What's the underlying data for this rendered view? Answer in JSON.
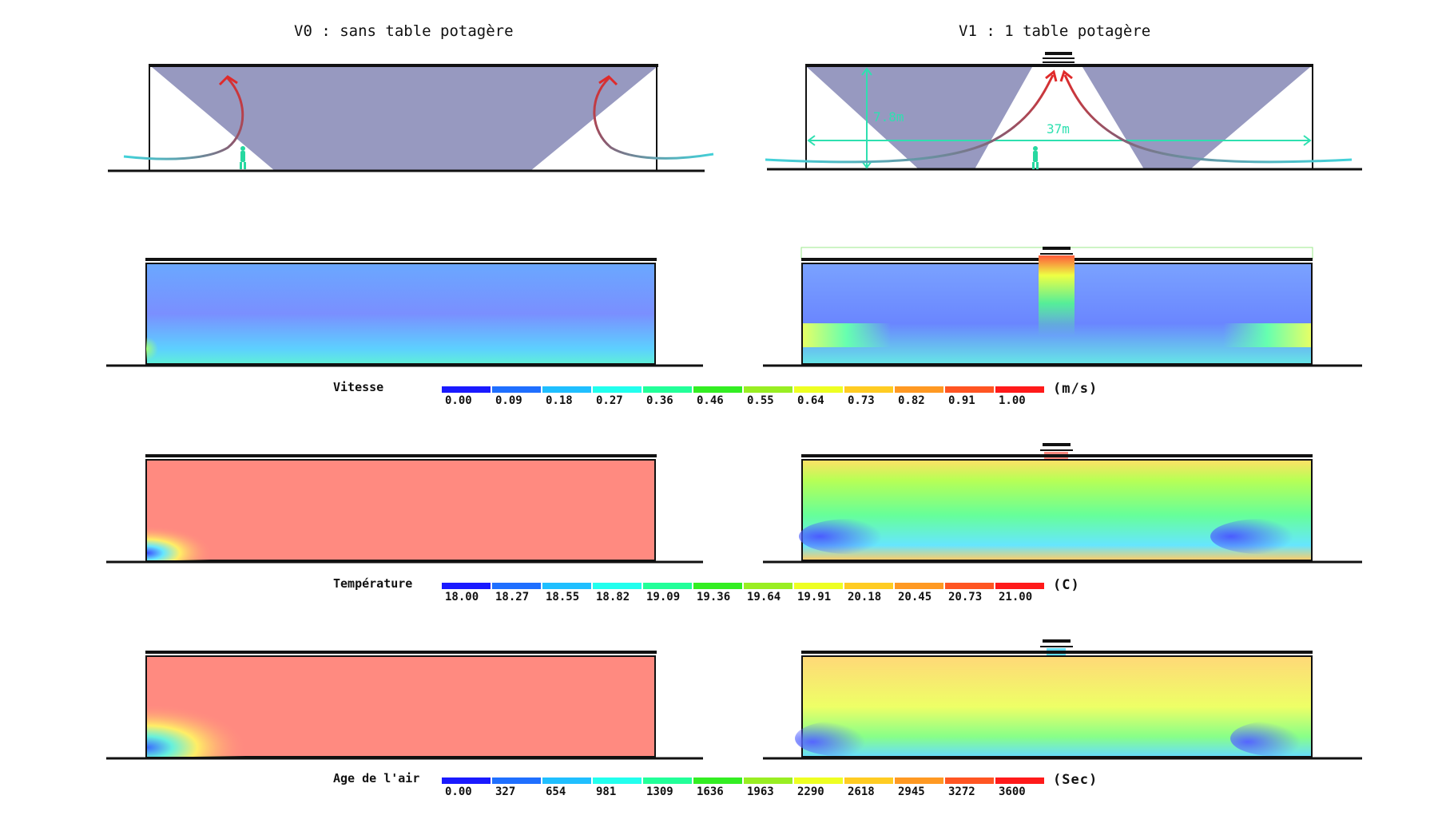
{
  "titles": {
    "left": "V0 : sans table potagère",
    "right": "V1 : 1 table potagère"
  },
  "dimensions": {
    "height_label": "7.8m",
    "width_label": "37m"
  },
  "colors": {
    "section_fill": "#9799c0",
    "flow_arrow_warm": "#e02a2a",
    "flow_arrow_cool": "#3fd6dd",
    "dimension_line": "#2ee0b0",
    "person": "#26d8a0"
  },
  "legends": {
    "speed": {
      "label": "Vitesse",
      "unit": "(m/s)",
      "ticks": [
        "0.00",
        "0.09",
        "0.18",
        "0.27",
        "0.36",
        "0.46",
        "0.55",
        "0.64",
        "0.73",
        "0.82",
        "0.91",
        "1.00"
      ]
    },
    "temperature": {
      "label": "Température",
      "unit": "(C)",
      "ticks": [
        "18.00",
        "18.27",
        "18.55",
        "18.82",
        "19.09",
        "19.36",
        "19.64",
        "19.91",
        "20.18",
        "20.45",
        "20.73",
        "21.00"
      ]
    },
    "air_age": {
      "label": "Age de l'air",
      "unit": "(Sec)",
      "ticks": [
        "0.00",
        "327",
        "654",
        "981",
        "1309",
        "1636",
        "1963",
        "2290",
        "2618",
        "2945",
        "3272",
        "3600"
      ]
    }
  },
  "colormap": [
    "#1a1aff",
    "#1f6fff",
    "#1fbfff",
    "#22ffee",
    "#22ff99",
    "#33ee22",
    "#99ee22",
    "#eeff22",
    "#ffcc22",
    "#ff9922",
    "#ff5522",
    "#ff1a1a"
  ]
}
